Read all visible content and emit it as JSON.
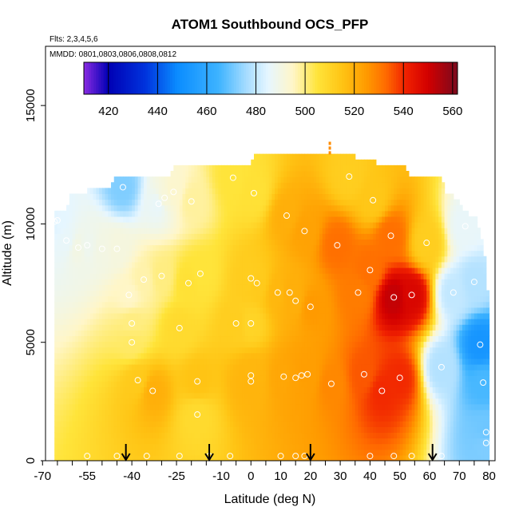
{
  "chart_data": {
    "type": "heatmap",
    "title": "ATOM1 Southbound OCS_PFP",
    "subtitle": "Flts: 2,3,4,5,6",
    "annotation": "MMDD: 0801,0803,0806,0808,0812",
    "xlabel": "Latitude (deg N)",
    "ylabel": "Altitude (m)",
    "xlim": [
      -69,
      82
    ],
    "ylim": [
      0,
      17500
    ],
    "x_ticks": [
      -70,
      -55,
      -40,
      -25,
      -10,
      0,
      10,
      20,
      30,
      40,
      50,
      60,
      70,
      80
    ],
    "x_tick_labels": [
      "-70",
      "-55",
      "-40",
      "-25",
      "-10",
      "0",
      "10",
      "20",
      "30",
      "40",
      "50",
      "60",
      "70",
      "80"
    ],
    "y_ticks": [
      0,
      5000,
      10000,
      15000
    ],
    "y_tick_labels": [
      "0",
      "5000",
      "10000",
      "15000"
    ],
    "colorbar": {
      "range": [
        410,
        562
      ],
      "ticks": [
        420,
        440,
        460,
        480,
        500,
        520,
        540,
        560
      ],
      "tick_labels": [
        "420",
        "440",
        "460",
        "480",
        "500",
        "520",
        "540",
        "560"
      ],
      "colormap": [
        {
          "v": 410,
          "c": "#8a2be2"
        },
        {
          "v": 420,
          "c": "#0000b4"
        },
        {
          "v": 435,
          "c": "#0033dd"
        },
        {
          "v": 448,
          "c": "#0a8cff"
        },
        {
          "v": 465,
          "c": "#3fb4ff"
        },
        {
          "v": 476,
          "c": "#a5dcff"
        },
        {
          "v": 485,
          "c": "#e6f6ff"
        },
        {
          "v": 495,
          "c": "#fff6c8"
        },
        {
          "v": 505,
          "c": "#ffe43a"
        },
        {
          "v": 515,
          "c": "#ffc414"
        },
        {
          "v": 525,
          "c": "#ff9a00"
        },
        {
          "v": 533,
          "c": "#ff6a00"
        },
        {
          "v": 541,
          "c": "#f02000"
        },
        {
          "v": 550,
          "c": "#d20000"
        },
        {
          "v": 562,
          "c": "#7a0a1e"
        }
      ]
    },
    "flight_dates_arrow_latitudes": [
      -42,
      -14,
      20,
      61
    ],
    "sample_points": [
      {
        "lat": -66,
        "alt": 10100,
        "v": 484
      },
      {
        "lat": -65,
        "alt": 10150,
        "v": 485
      },
      {
        "lat": -62,
        "alt": 9300,
        "v": 486
      },
      {
        "lat": -58,
        "alt": 9000,
        "v": 490
      },
      {
        "lat": -55,
        "alt": 9100,
        "v": 488
      },
      {
        "lat": -50,
        "alt": 8950,
        "v": 490
      },
      {
        "lat": -45,
        "alt": 8950,
        "v": 491
      },
      {
        "lat": -43,
        "alt": 11550,
        "v": 472
      },
      {
        "lat": -41,
        "alt": 7000,
        "v": 495
      },
      {
        "lat": -40,
        "alt": 5800,
        "v": 500
      },
      {
        "lat": -40,
        "alt": 5000,
        "v": 502
      },
      {
        "lat": -38,
        "alt": 3400,
        "v": 513
      },
      {
        "lat": -36,
        "alt": 7650,
        "v": 497
      },
      {
        "lat": -33,
        "alt": 2950,
        "v": 520
      },
      {
        "lat": -31,
        "alt": 10850,
        "v": 486
      },
      {
        "lat": -30,
        "alt": 7800,
        "v": 500
      },
      {
        "lat": -29,
        "alt": 11100,
        "v": 492
      },
      {
        "lat": -26,
        "alt": 11350,
        "v": 494
      },
      {
        "lat": -24,
        "alt": 5600,
        "v": 508
      },
      {
        "lat": -21,
        "alt": 7500,
        "v": 506
      },
      {
        "lat": -20,
        "alt": 10950,
        "v": 498
      },
      {
        "lat": -18,
        "alt": 3350,
        "v": 515
      },
      {
        "lat": -18,
        "alt": 1950,
        "v": 508
      },
      {
        "lat": -17,
        "alt": 7900,
        "v": 505
      },
      {
        "lat": -6,
        "alt": 11950,
        "v": 505
      },
      {
        "lat": -5,
        "alt": 5800,
        "v": 512
      },
      {
        "lat": 0,
        "alt": 7700,
        "v": 512
      },
      {
        "lat": 0,
        "alt": 5800,
        "v": 510
      },
      {
        "lat": 0,
        "alt": 3600,
        "v": 518
      },
      {
        "lat": 0,
        "alt": 3350,
        "v": 519
      },
      {
        "lat": 1,
        "alt": 11300,
        "v": 506
      },
      {
        "lat": 2,
        "alt": 7500,
        "v": 513
      },
      {
        "lat": 9,
        "alt": 7100,
        "v": 518
      },
      {
        "lat": 11,
        "alt": 3550,
        "v": 522
      },
      {
        "lat": 12,
        "alt": 10350,
        "v": 520
      },
      {
        "lat": 13,
        "alt": 7100,
        "v": 520
      },
      {
        "lat": 15,
        "alt": 6750,
        "v": 520
      },
      {
        "lat": 15,
        "alt": 3500,
        "v": 523
      },
      {
        "lat": 17,
        "alt": 3600,
        "v": 524
      },
      {
        "lat": 18,
        "alt": 9700,
        "v": 523
      },
      {
        "lat": 19,
        "alt": 3650,
        "v": 524
      },
      {
        "lat": 20,
        "alt": 6500,
        "v": 525
      },
      {
        "lat": 27,
        "alt": 3250,
        "v": 528
      },
      {
        "lat": 29,
        "alt": 9100,
        "v": 532
      },
      {
        "lat": 33,
        "alt": 12000,
        "v": 512
      },
      {
        "lat": 36,
        "alt": 7100,
        "v": 530
      },
      {
        "lat": 38,
        "alt": 3650,
        "v": 535
      },
      {
        "lat": 40,
        "alt": 8050,
        "v": 532
      },
      {
        "lat": 41,
        "alt": 11000,
        "v": 514
      },
      {
        "lat": 44,
        "alt": 2950,
        "v": 540
      },
      {
        "lat": 47,
        "alt": 9500,
        "v": 532
      },
      {
        "lat": 48,
        "alt": 6900,
        "v": 552
      },
      {
        "lat": 50,
        "alt": 3500,
        "v": 540
      },
      {
        "lat": 54,
        "alt": 7000,
        "v": 548
      },
      {
        "lat": 59,
        "alt": 9200,
        "v": 512
      },
      {
        "lat": 64,
        "alt": 3950,
        "v": 478
      },
      {
        "lat": 68,
        "alt": 7100,
        "v": 480
      },
      {
        "lat": 72,
        "alt": 9900,
        "v": 486
      },
      {
        "lat": 75,
        "alt": 7550,
        "v": 478
      },
      {
        "lat": 77,
        "alt": 4900,
        "v": 452
      },
      {
        "lat": 78,
        "alt": 3300,
        "v": 466
      },
      {
        "lat": 79,
        "alt": 1200,
        "v": 470
      },
      {
        "lat": 79,
        "alt": 750,
        "v": 472
      }
    ]
  }
}
